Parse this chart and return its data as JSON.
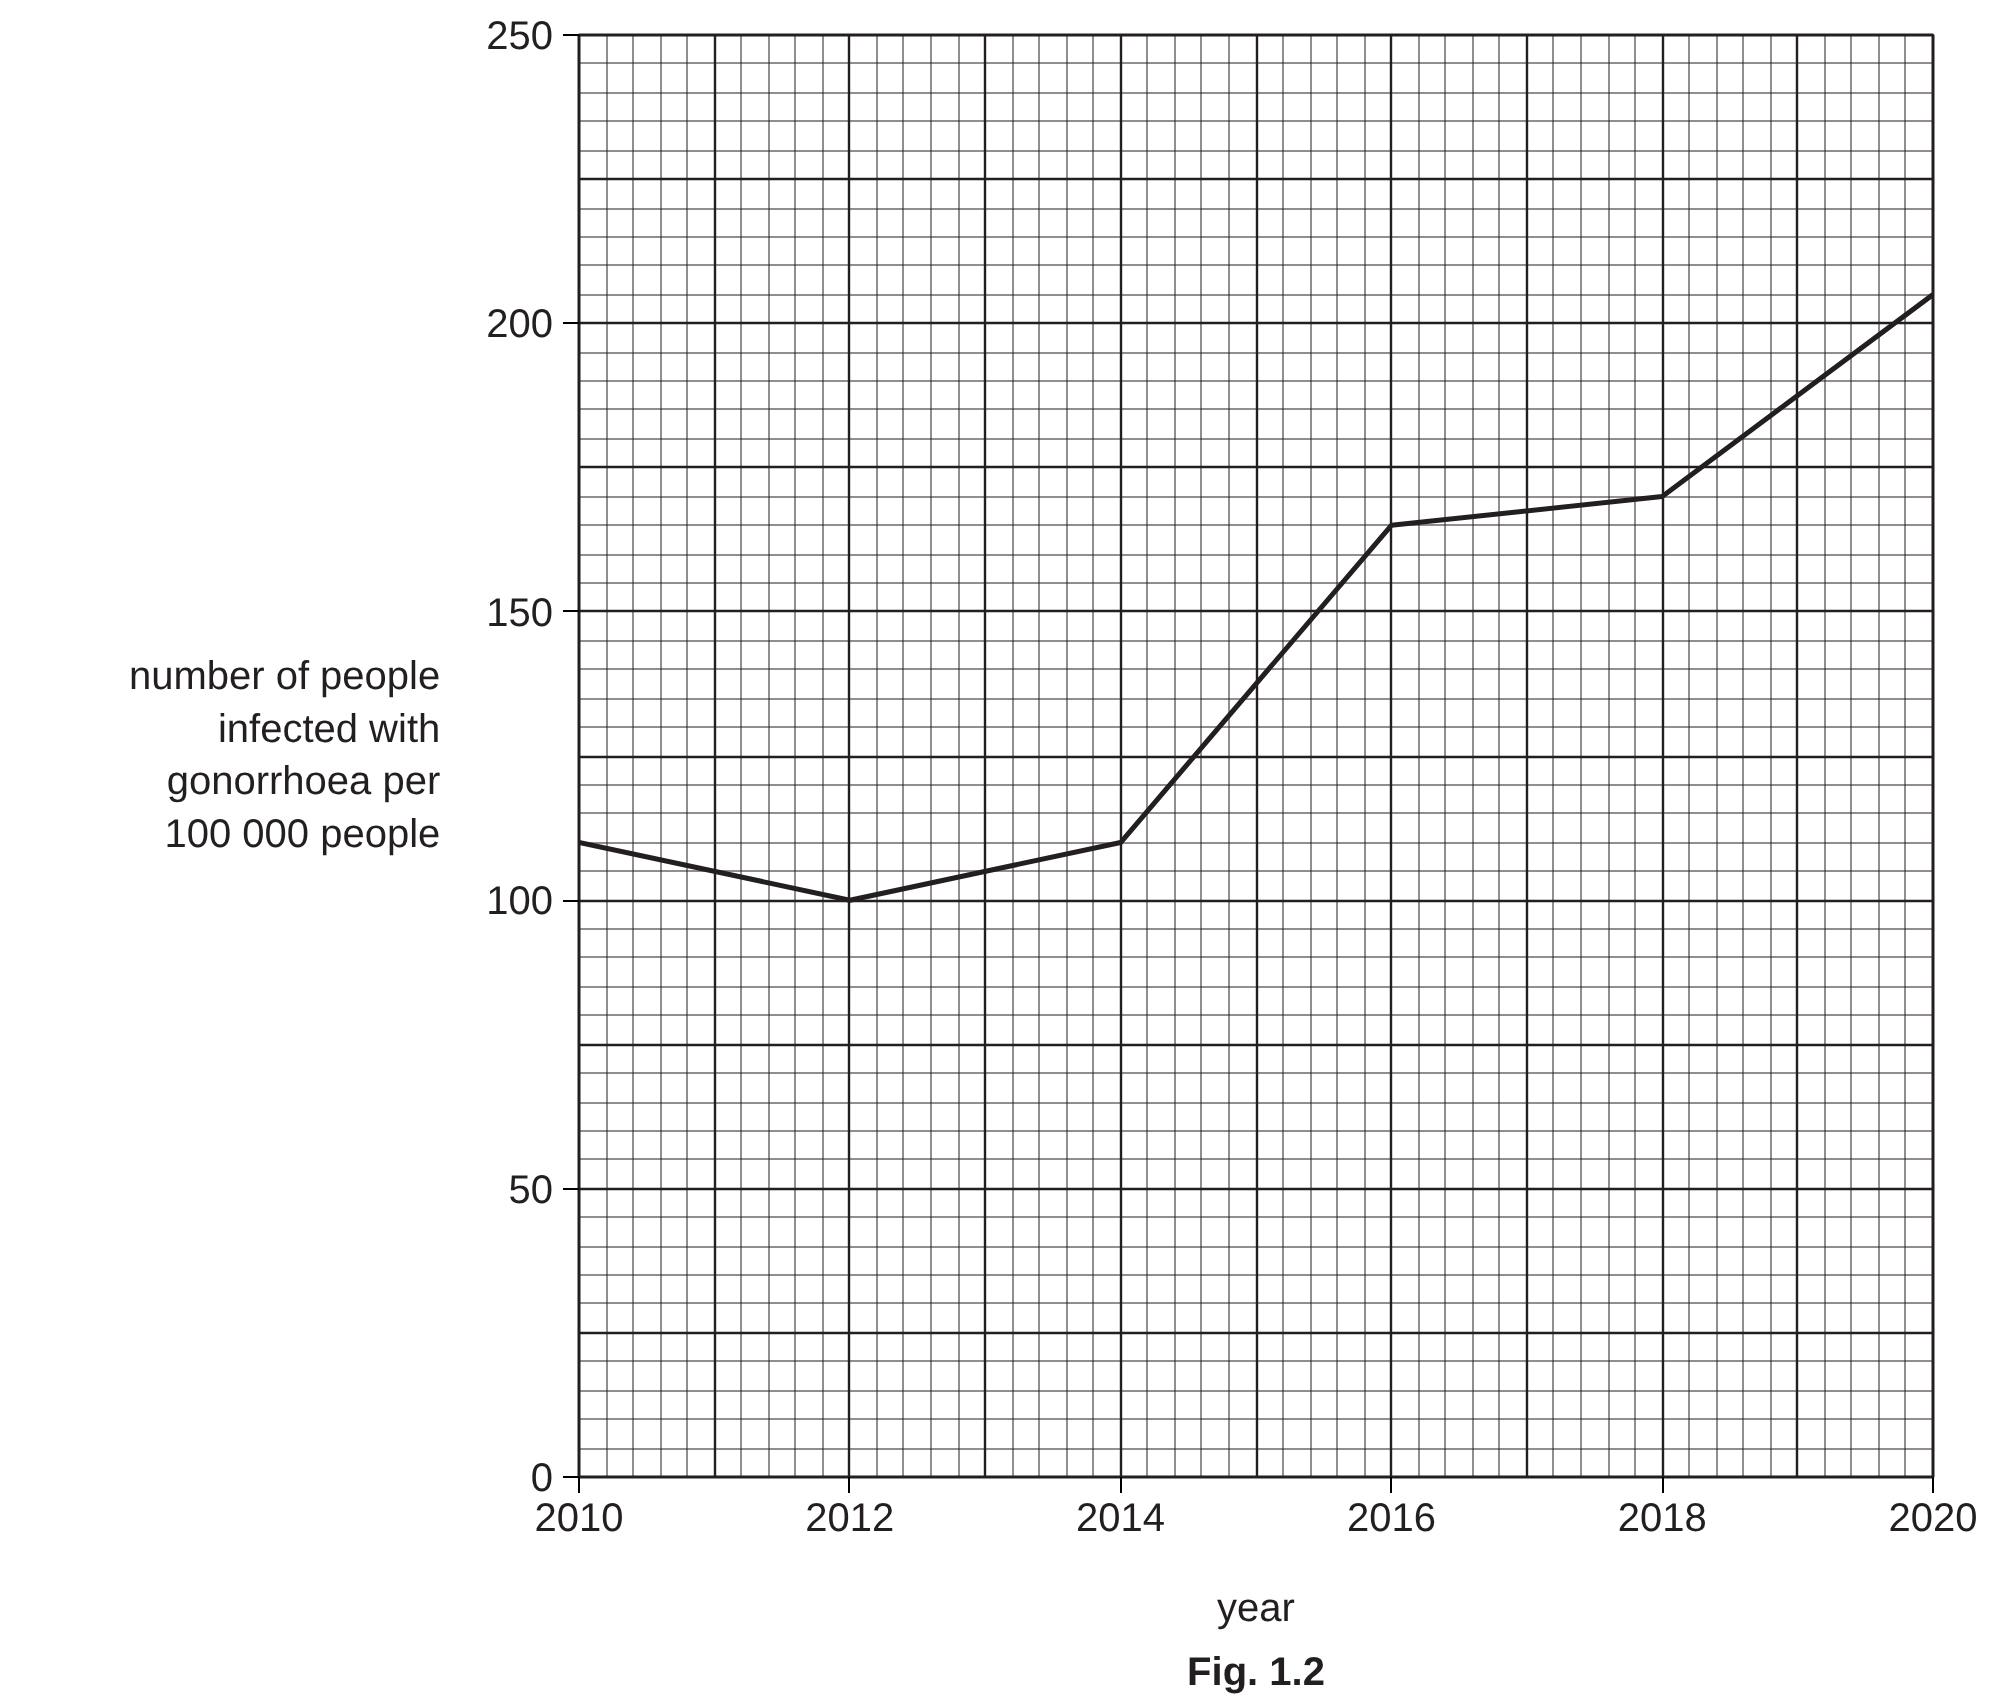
{
  "chart_data": {
    "type": "line",
    "title": "Fig. 1.2",
    "xlabel": "year",
    "ylabel": "number of people\ninfected with\ngonorrhoea per\n100 000 people",
    "x": [
      2010,
      2012,
      2014,
      2016,
      2018,
      2020
    ],
    "series": [
      {
        "color": "#231f20",
        "values": [
          110,
          100,
          110,
          165,
          170,
          205
        ]
      }
    ],
    "xlim": [
      2010,
      2020
    ],
    "ylim": [
      0,
      250
    ],
    "xticks": [
      2010,
      2012,
      2014,
      2016,
      2018,
      2020
    ],
    "yticks": [
      0,
      50,
      100,
      150,
      200,
      250
    ],
    "grid": true,
    "marker": "none",
    "line_style": "solid"
  }
}
